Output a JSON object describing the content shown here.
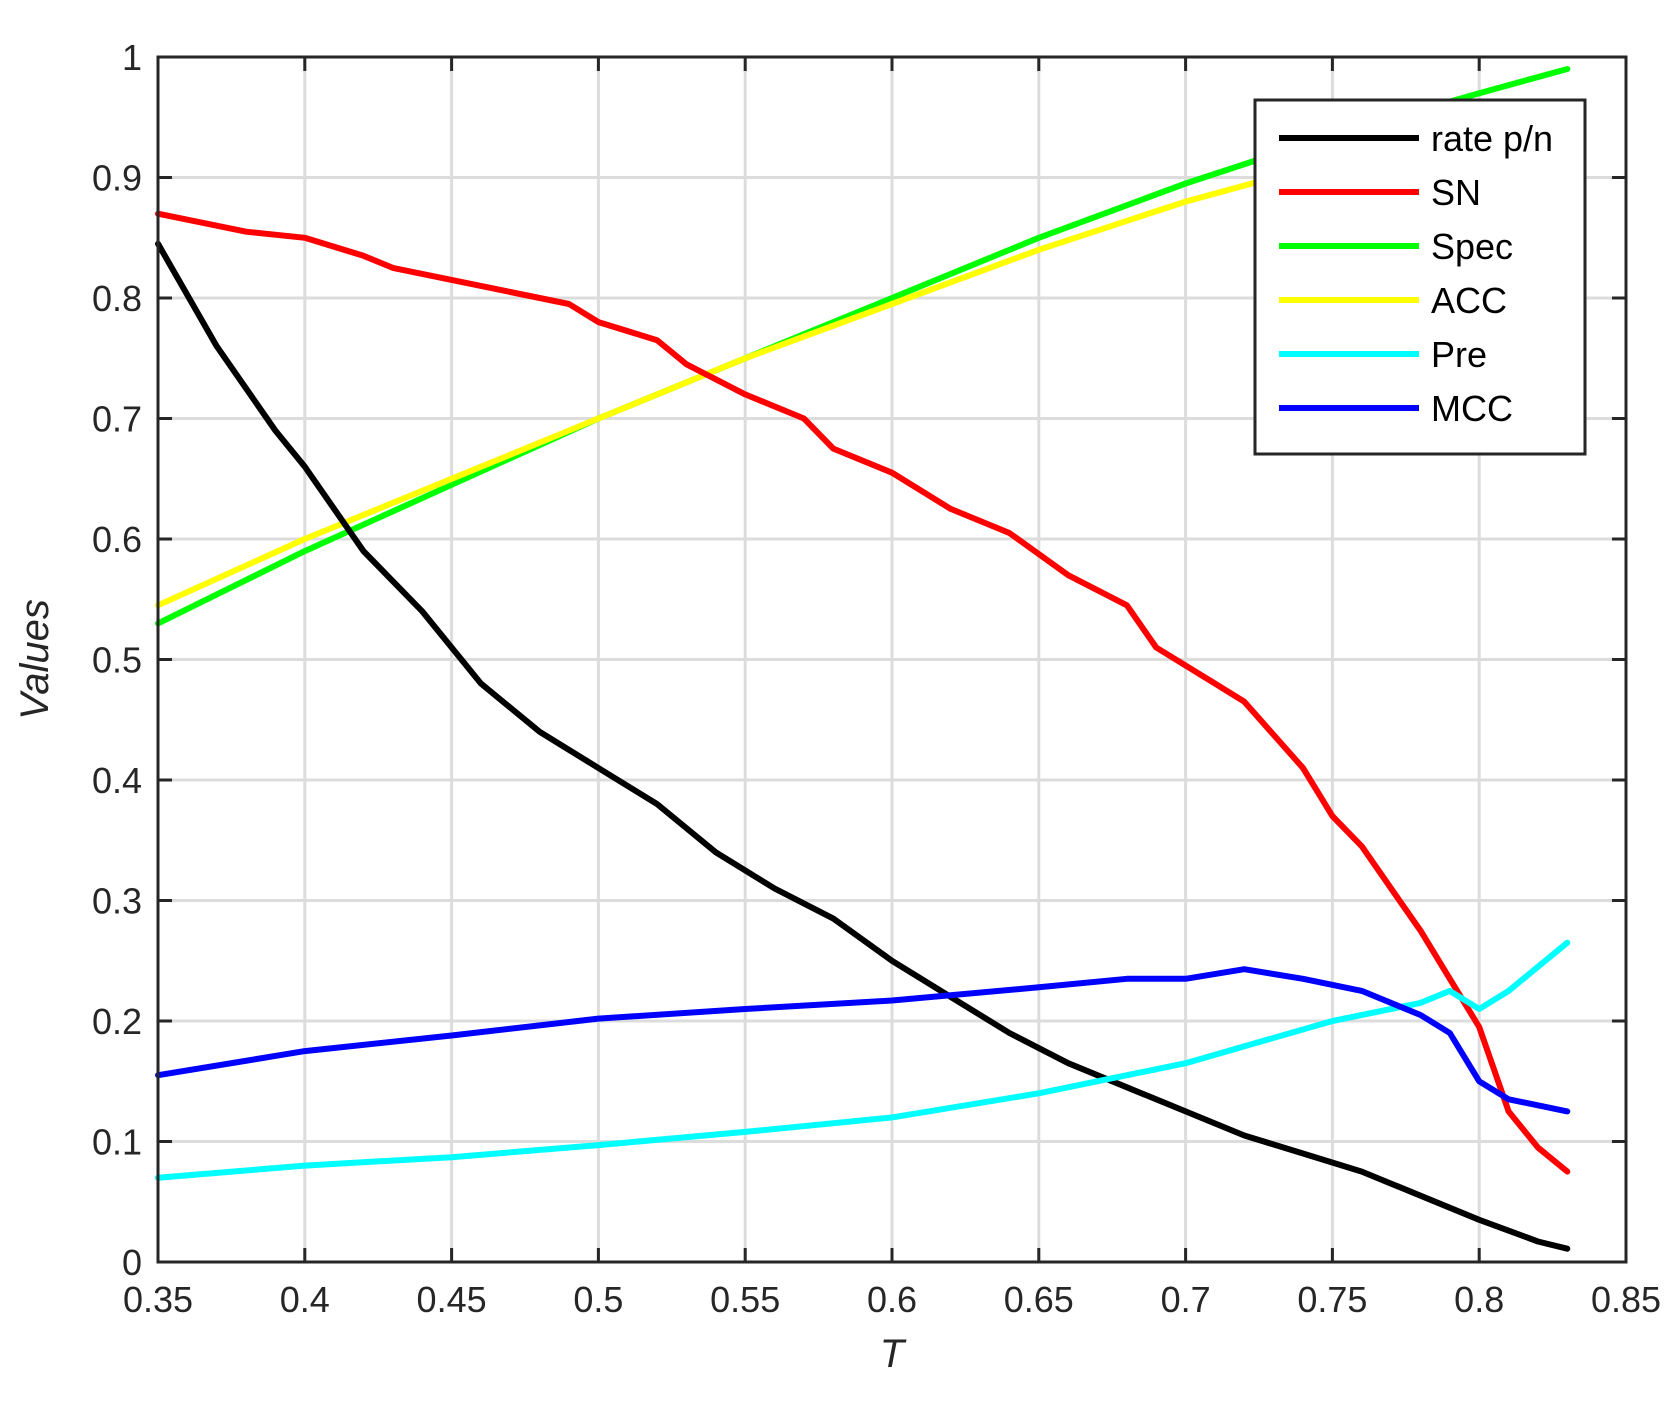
{
  "chart_data": {
    "type": "line",
    "xlabel": "T",
    "ylabel": "Values",
    "xlim": [
      0.35,
      0.85
    ],
    "ylim": [
      0,
      1
    ],
    "xticks": [
      "0.35",
      "0.4",
      "0.45",
      "0.5",
      "0.55",
      "0.6",
      "0.65",
      "0.7",
      "0.75",
      "0.8",
      "0.85"
    ],
    "yticks": [
      "0",
      "0.1",
      "0.2",
      "0.3",
      "0.4",
      "0.5",
      "0.6",
      "0.7",
      "0.8",
      "0.9",
      "1"
    ],
    "grid": true,
    "legend_position": "top-right",
    "series": [
      {
        "name": "rate p/n",
        "color": "#000000",
        "x": [
          0.35,
          0.37,
          0.39,
          0.4,
          0.42,
          0.44,
          0.46,
          0.48,
          0.5,
          0.52,
          0.54,
          0.56,
          0.58,
          0.6,
          0.62,
          0.64,
          0.66,
          0.68,
          0.7,
          0.72,
          0.74,
          0.76,
          0.78,
          0.8,
          0.82,
          0.83
        ],
        "y": [
          0.845,
          0.76,
          0.69,
          0.66,
          0.59,
          0.54,
          0.48,
          0.44,
          0.41,
          0.38,
          0.34,
          0.31,
          0.285,
          0.25,
          0.22,
          0.19,
          0.165,
          0.145,
          0.125,
          0.105,
          0.09,
          0.075,
          0.055,
          0.035,
          0.017,
          0.011
        ]
      },
      {
        "name": "SN",
        "color": "#ff0000",
        "x": [
          0.35,
          0.36,
          0.38,
          0.4,
          0.42,
          0.43,
          0.45,
          0.47,
          0.49,
          0.5,
          0.52,
          0.53,
          0.55,
          0.57,
          0.58,
          0.6,
          0.62,
          0.64,
          0.66,
          0.68,
          0.69,
          0.71,
          0.72,
          0.74,
          0.75,
          0.76,
          0.77,
          0.78,
          0.79,
          0.8,
          0.81,
          0.82,
          0.83
        ],
        "y": [
          0.87,
          0.865,
          0.855,
          0.85,
          0.835,
          0.825,
          0.815,
          0.805,
          0.795,
          0.78,
          0.765,
          0.745,
          0.72,
          0.7,
          0.675,
          0.655,
          0.625,
          0.605,
          0.57,
          0.545,
          0.51,
          0.48,
          0.465,
          0.41,
          0.37,
          0.345,
          0.31,
          0.275,
          0.235,
          0.195,
          0.125,
          0.095,
          0.075
        ]
      },
      {
        "name": "Spec",
        "color": "#00ff00",
        "x": [
          0.35,
          0.4,
          0.45,
          0.5,
          0.55,
          0.6,
          0.65,
          0.7,
          0.75,
          0.8,
          0.83
        ],
        "y": [
          0.53,
          0.59,
          0.645,
          0.7,
          0.75,
          0.8,
          0.85,
          0.895,
          0.935,
          0.97,
          0.99
        ]
      },
      {
        "name": "ACC",
        "color": "#ffff00",
        "x": [
          0.35,
          0.4,
          0.45,
          0.5,
          0.55,
          0.6,
          0.65,
          0.7,
          0.73
        ],
        "y": [
          0.545,
          0.6,
          0.65,
          0.7,
          0.75,
          0.795,
          0.84,
          0.88,
          0.9
        ]
      },
      {
        "name": "Pre",
        "color": "#00ffff",
        "x": [
          0.35,
          0.4,
          0.45,
          0.5,
          0.55,
          0.6,
          0.65,
          0.7,
          0.75,
          0.78,
          0.79,
          0.8,
          0.81,
          0.82,
          0.83
        ],
        "y": [
          0.07,
          0.08,
          0.087,
          0.097,
          0.108,
          0.12,
          0.14,
          0.165,
          0.2,
          0.215,
          0.225,
          0.21,
          0.225,
          0.245,
          0.265
        ]
      },
      {
        "name": "MCC",
        "color": "#0000ff",
        "x": [
          0.35,
          0.4,
          0.45,
          0.5,
          0.55,
          0.6,
          0.65,
          0.68,
          0.7,
          0.72,
          0.74,
          0.76,
          0.78,
          0.79,
          0.8,
          0.81,
          0.82,
          0.83
        ],
        "y": [
          0.155,
          0.175,
          0.188,
          0.202,
          0.21,
          0.217,
          0.228,
          0.235,
          0.235,
          0.243,
          0.235,
          0.225,
          0.205,
          0.19,
          0.15,
          0.135,
          0.13,
          0.125
        ]
      }
    ]
  }
}
